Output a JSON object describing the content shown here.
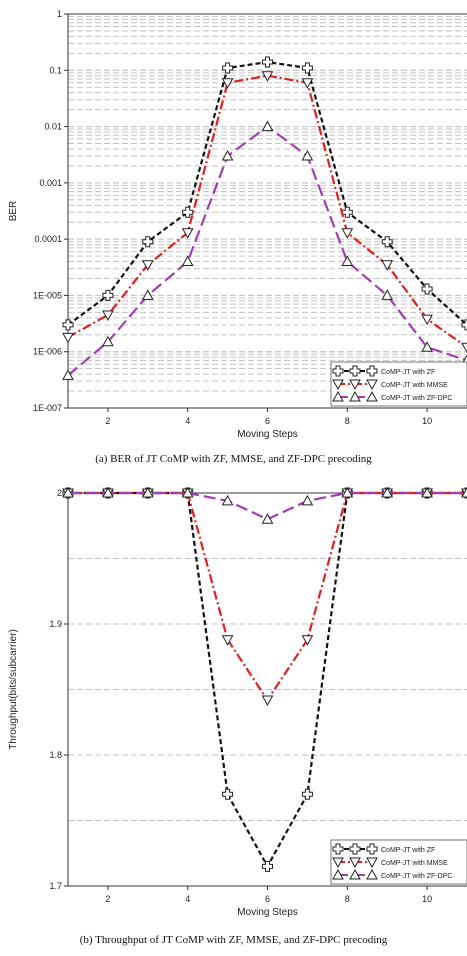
{
  "chart_data": [
    {
      "type": "line",
      "yscale": "log",
      "xlabel": "Moving Steps",
      "ylabel": "BER",
      "xlim": [
        1,
        11
      ],
      "ylim": [
        1e-07,
        1
      ],
      "xticks": [
        2,
        4,
        6,
        8,
        10
      ],
      "yticks": [
        {
          "value": 1,
          "label": "1"
        },
        {
          "value": 0.1,
          "label": "0.1"
        },
        {
          "value": 0.01,
          "label": "0.01"
        },
        {
          "value": 0.001,
          "label": "0.001"
        },
        {
          "value": 0.0001,
          "label": "0.0001"
        },
        {
          "value": 1e-05,
          "label": "1E-005"
        },
        {
          "value": 1e-06,
          "label": "1E-006"
        },
        {
          "value": 1e-07,
          "label": "1E-007"
        }
      ],
      "grid": "horizontal-dashed",
      "legend_position": "bottom-right",
      "x": [
        1,
        2,
        3,
        4,
        5,
        6,
        7,
        8,
        9,
        10,
        11
      ],
      "series": [
        {
          "name": "CoMP-JT with ZF",
          "color": "#111111",
          "dash": "short-dash",
          "marker": "cross",
          "values": [
            3e-06,
            1e-05,
            9e-05,
            0.0003,
            0.11,
            0.14,
            0.11,
            0.0003,
            9e-05,
            1.3e-05,
            3e-06
          ]
        },
        {
          "name": "CoMP-JT with MMSE",
          "color": "#e02020",
          "dash": "dash-dot",
          "marker": "triangle-down",
          "values": [
            1.8e-06,
            4.5e-06,
            3.5e-05,
            0.00013,
            0.06,
            0.08,
            0.06,
            0.00013,
            3.5e-05,
            3.8e-06,
            1.2e-06
          ]
        },
        {
          "name": "CoMP-JT with ZF-DPC",
          "color": "#a040b0",
          "dash": "long-dash",
          "marker": "triangle-up",
          "values": [
            3.8e-07,
            1.5e-06,
            1e-05,
            4e-05,
            0.003,
            0.01,
            0.003,
            4e-05,
            1e-05,
            1.2e-06,
            7e-07
          ]
        }
      ]
    },
    {
      "type": "line",
      "xlabel": "Moving Steps",
      "ylabel": "Throughput(bits/subcarrier)",
      "xlim": [
        1,
        11
      ],
      "ylim": [
        1.7,
        2
      ],
      "xticks": [
        2,
        4,
        6,
        8,
        10
      ],
      "yticks": [
        {
          "value": 2,
          "label": "2"
        },
        {
          "value": 1.9,
          "label": "1.9"
        },
        {
          "value": 1.8,
          "label": "1.8"
        },
        {
          "value": 1.7,
          "label": "1.7"
        }
      ],
      "grid": "horizontal-dashed",
      "legend_position": "bottom-right",
      "x": [
        1,
        2,
        3,
        4,
        5,
        6,
        7,
        8,
        9,
        10,
        11
      ],
      "series": [
        {
          "name": "CoMP-JT with ZF",
          "color": "#111111",
          "dash": "short-dash",
          "marker": "cross",
          "values": [
            2,
            2,
            2,
            2,
            1.77,
            1.715,
            1.77,
            2,
            2,
            2,
            2
          ]
        },
        {
          "name": "CoMP-JT with MMSE",
          "color": "#e02020",
          "dash": "dash-dot",
          "marker": "triangle-down",
          "values": [
            2,
            2,
            2,
            2,
            1.888,
            1.842,
            1.888,
            2,
            2,
            2,
            2
          ]
        },
        {
          "name": "CoMP-JT with ZF-DPC",
          "color": "#a040b0",
          "dash": "long-dash",
          "marker": "triangle-up",
          "values": [
            2,
            2,
            2,
            2,
            1.994,
            1.98,
            1.994,
            2,
            2,
            2,
            2
          ]
        }
      ]
    }
  ],
  "captions": {
    "top": "(a) BER of JT CoMP with ZF, MMSE, and ZF-DPC precoding",
    "bottom": "(b) Throughput of JT CoMP with ZF, MMSE, and ZF-DPC precoding"
  }
}
